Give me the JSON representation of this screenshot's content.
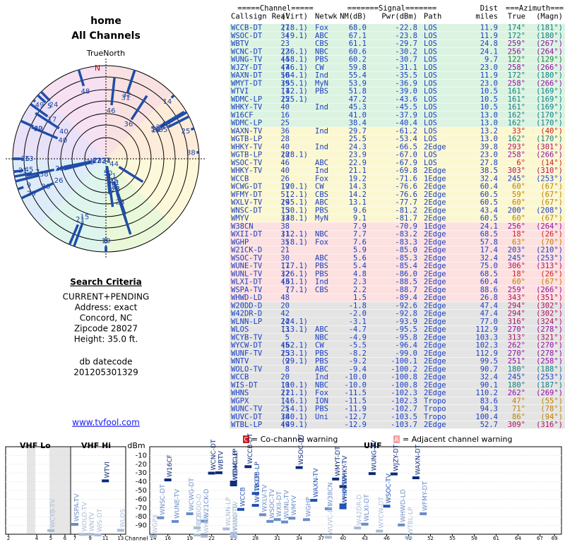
{
  "header": {
    "title": "home",
    "subtitle": "All Channels"
  },
  "radar": {
    "north_label": "TrueNorth",
    "north": "N"
  },
  "criteria": {
    "heading": "Search Criteria",
    "lines": [
      "CURRENT+PENDING",
      "Address: exact",
      "Concord, NC",
      "Zipcode 28027",
      "Height: 35.0 ft."
    ],
    "db_label": "db datecode",
    "db_code": "201205301329",
    "site": "www.tvfool.com"
  },
  "table": {
    "groups": [
      "=====Channel=====",
      "=======Signal=======",
      "Dist",
      "===Azimuth==="
    ],
    "headers": [
      "Callsign",
      "Real",
      "(Virt)",
      "Netwk",
      "NM(dB)",
      "Pwr(dBm)",
      "Path",
      "miles",
      "True",
      "(Magn)"
    ],
    "rows": [
      [
        "WCCB-DT",
        27,
        "(18.1)",
        "Fox",
        "68.0",
        "-22.8",
        "LOS",
        "11.9",
        "174°",
        "(181°)"
      ],
      [
        "WSOC-DT",
        34,
        "(9.1)",
        "ABC",
        "67.1",
        "-23.8",
        "LOS",
        "11.9",
        "172°",
        "(180°)"
      ],
      [
        "WBTV",
        23,
        null,
        "CBS",
        "61.1",
        "-29.7",
        "LOS",
        "24.8",
        "259°",
        "(267°)"
      ],
      [
        "WCNC-DT",
        22,
        "(36.1)",
        "NBC",
        "60.6",
        "-30.2",
        "LOS",
        "24.1",
        "256°",
        "(264°)"
      ],
      [
        "WUNG-TV",
        44,
        "(58.1)",
        "PBS",
        "60.2",
        "-30.7",
        "LOS",
        "9.7",
        "122°",
        "(129°)"
      ],
      [
        "WJZY-DT",
        47,
        "(46.1)",
        "CW",
        "59.8",
        "-31.1",
        "LOS",
        "23.0",
        "258°",
        "(266°)"
      ],
      [
        "WAXN-DT",
        50,
        "(64.1)",
        "Ind",
        "55.4",
        "-35.5",
        "LOS",
        "11.9",
        "172°",
        "(180°)"
      ],
      [
        "WMYT-DT",
        39,
        "(55.1)",
        "MyN",
        "53.9",
        "-36.9",
        "LOS",
        "23.0",
        "258°",
        "(266°)"
      ],
      [
        "WTVI",
        11,
        "(42.1)",
        "PBS",
        "51.8",
        "-39.0",
        "LOS",
        "10.5",
        "161°",
        "(169°)"
      ],
      [
        "WDMC-LP",
        25,
        "(25.1)",
        null,
        "47.2",
        "-43.6",
        "LOS",
        "10.5",
        "161°",
        "(169°)"
      ],
      [
        "WHKY-TV",
        40,
        null,
        "Ind",
        "45.3",
        "-45.5",
        "LOS",
        "10.5",
        "161°",
        "(169°)"
      ],
      [
        "W16CF",
        16,
        null,
        null,
        "41.0",
        "-37.9",
        "LOS",
        "13.0",
        "162°",
        "(170°)"
      ],
      [
        "WDMC-LP",
        25,
        null,
        null,
        "38.4",
        "-40.4",
        "LOS",
        "13.0",
        "162°",
        "(170°)"
      ],
      [
        "WAXN-TV",
        36,
        null,
        "Ind",
        "29.7",
        "-61.2",
        "LOS",
        "13.2",
        "33°",
        "(40°)"
      ],
      [
        "WGTB-LP",
        28,
        null,
        null,
        "25.5",
        "-53.4",
        "LOS",
        "13.0",
        "162°",
        "(170°)"
      ],
      [
        "WHKY-TV",
        40,
        null,
        "Ind",
        "24.3",
        "-66.5",
        "2Edge",
        "39.8",
        "293°",
        "(301°)"
      ],
      [
        "WGTB-LP",
        28,
        "(28.1)",
        null,
        "23.9",
        "-67.0",
        "LOS",
        "23.0",
        "258°",
        "(266°)"
      ],
      [
        "WSOC-TV",
        46,
        null,
        "ABC",
        "22.9",
        "-67.9",
        "LOS",
        "27.8",
        "6°",
        "(14°)"
      ],
      [
        "WHKY-TV",
        40,
        null,
        "Ind",
        "21.1",
        "-69.8",
        "2Edge",
        "38.5",
        "303°",
        "(310°)"
      ],
      [
        "WCCB",
        26,
        null,
        "Fox",
        "19.2",
        "-71.6",
        "1Edge",
        "32.4",
        "245°",
        "(253°)"
      ],
      [
        "WCWG-DT",
        19,
        "(20.1)",
        "CW",
        "14.3",
        "-76.6",
        "2Edge",
        "60.4",
        "60°",
        "(67°)"
      ],
      [
        "WFMY-DT",
        51,
        "(2.1)",
        "CBS",
        "14.2",
        "-76.6",
        "2Edge",
        "60.5",
        "59°",
        "(67°)"
      ],
      [
        "WXLV-TV",
        29,
        "(45.1)",
        "ABC",
        "13.1",
        "-77.7",
        "2Edge",
        "60.5",
        "60°",
        "(67°)"
      ],
      [
        "WNSC-DT",
        15,
        "(30.1)",
        "PBS",
        "9.6",
        "-81.2",
        "2Edge",
        "43.4",
        "200°",
        "(208°)"
      ],
      [
        "WMYV",
        33,
        "(48.1)",
        "MyN",
        "9.1",
        "-81.7",
        "2Edge",
        "60.5",
        "60°",
        "(67°)"
      ],
      [
        "W38CN",
        38,
        null,
        null,
        "7.9",
        "-70.9",
        "1Edge",
        "24.1",
        "256°",
        "(264°)"
      ],
      [
        "WXII-DT",
        31,
        "(12.1)",
        "NBC",
        "7.7",
        "-83.2",
        "2Edge",
        "68.5",
        "18°",
        "(26°)"
      ],
      [
        "WGHP",
        35,
        "(8.1)",
        "Fox",
        "7.6",
        "-83.3",
        "2Edge",
        "57.8",
        "63°",
        "(70°)"
      ],
      [
        "W21CK-D",
        21,
        null,
        null,
        "5.9",
        "-85.0",
        "2Edge",
        "17.4",
        "203°",
        "(210°)"
      ],
      [
        "WSOC-TV",
        30,
        null,
        "ABC",
        "5.6",
        "-85.3",
        "2Edge",
        "32.4",
        "245°",
        "(253°)"
      ],
      [
        "WUNE-TV",
        17,
        "(17.1)",
        "PBS",
        "5.4",
        "-85.4",
        "2Edge",
        "75.0",
        "306°",
        "(313°)"
      ],
      [
        "WUNL-TV",
        32,
        "(26.1)",
        "PBS",
        "4.8",
        "-86.0",
        "2Edge",
        "68.5",
        "18°",
        "(26°)"
      ],
      [
        "WLXI-DT",
        43,
        "(61.1)",
        "Ind",
        "2.3",
        "-88.5",
        "2Edge",
        "60.4",
        "60°",
        "(67°)"
      ],
      [
        "WSPA-TV",
        7,
        "(7.1)",
        "CBS",
        "2.2",
        "-88.7",
        "2Edge",
        "88.6",
        "259°",
        "(266°)"
      ],
      [
        "WHWD-LD",
        48,
        null,
        null,
        "1.5",
        "-89.4",
        "2Edge",
        "26.8",
        "343°",
        "(351°)"
      ],
      [
        "W20DD-D",
        20,
        null,
        null,
        "-1.8",
        "-92.6",
        "2Edge",
        "47.4",
        "294°",
        "(302°)"
      ],
      [
        "W42DR-D",
        42,
        null,
        null,
        "-2.0",
        "-92.8",
        "2Edge",
        "47.4",
        "294°",
        "(302°)"
      ],
      [
        "WLNN-LP",
        24,
        "(24.1)",
        null,
        "-3.1",
        "-93.9",
        "2Edge",
        "77.0",
        "316°",
        "(324°)"
      ],
      [
        "WLOS",
        13,
        "(13.1)",
        "ABC",
        "-4.7",
        "-95.5",
        "2Edge",
        "112.9",
        "270°",
        "(278°)"
      ],
      [
        "WCYB-TV",
        5,
        null,
        "NBC",
        "-4.9",
        "-95.8",
        "2Edge",
        "103.3",
        "313°",
        "(321°)"
      ],
      [
        "WYCW-DT",
        45,
        "(62.1)",
        "CW",
        "-5.5",
        "-96.4",
        "2Edge",
        "102.3",
        "262°",
        "(270°)"
      ],
      [
        "WUNF-TV",
        25,
        "(33.1)",
        "PBS",
        "-8.2",
        "-99.0",
        "2Edge",
        "112.9",
        "270°",
        "(278°)"
      ],
      [
        "WNTV",
        9,
        "(29.1)",
        "PBS",
        "-9.2",
        "-100.1",
        "2Edge",
        "99.5",
        "251°",
        "(258°)"
      ],
      [
        "WOLO-TV",
        8,
        null,
        "ABC",
        "-9.4",
        "-100.2",
        "2Edge",
        "90.7",
        "180°",
        "(188°)"
      ],
      [
        "WCCB",
        20,
        null,
        "Ind",
        "-10.0",
        "-100.8",
        "2Edge",
        "32.4",
        "245°",
        "(253°)"
      ],
      [
        "WIS-DT",
        10,
        "(10.1)",
        "NBC",
        "-10.0",
        "-100.8",
        "2Edge",
        "90.1",
        "180°",
        "(187°)"
      ],
      [
        "WHNS",
        21,
        "(21.1)",
        "Fox",
        "-11.5",
        "-102.3",
        "2Edge",
        "110.2",
        "262°",
        "(269°)"
      ],
      [
        "WGPX",
        14,
        "(16.1)",
        "ION",
        "-11.5",
        "-102.3",
        "Tropo",
        "83.6",
        "47°",
        "(55°)"
      ],
      [
        "WUNC-TV",
        25,
        "(4.1)",
        "PBS",
        "-11.9",
        "-102.7",
        "Tropo",
        "94.3",
        "71°",
        "(78°)"
      ],
      [
        "WUVC-DT",
        38,
        "(40.1)",
        "Uni",
        "-12.7",
        "-103.5",
        "Tropo",
        "100.4",
        "86°",
        "(94°)"
      ],
      [
        "WTBL-LP",
        49,
        "(49.1)",
        null,
        "-12.9",
        "-103.7",
        "2Edge",
        "52.7",
        "309°",
        "(316°)"
      ]
    ]
  },
  "spectrum": {
    "bands": [
      "VHF Lo",
      "VHF Hi",
      "UHF"
    ],
    "y_label": "dBm",
    "x_label": "Channel",
    "co_icon": "C",
    "co_text": "= Co-channel warning",
    "adj_icon": "A",
    "adj_text": "= Adjacent channel warning",
    "ylim": [
      -100,
      0
    ],
    "yticks": [
      -10,
      -20,
      -30,
      -40,
      -50,
      -60,
      -70,
      -80,
      -90
    ],
    "lo_ticks": [
      2,
      4,
      5,
      6
    ],
    "hi_ticks": [
      7,
      9,
      11,
      13
    ],
    "uhf_ticks": [
      14,
      16,
      19,
      22,
      25,
      28,
      31,
      34,
      37,
      40,
      43,
      46,
      49,
      52,
      55,
      58,
      61,
      64,
      67,
      69
    ]
  }
}
